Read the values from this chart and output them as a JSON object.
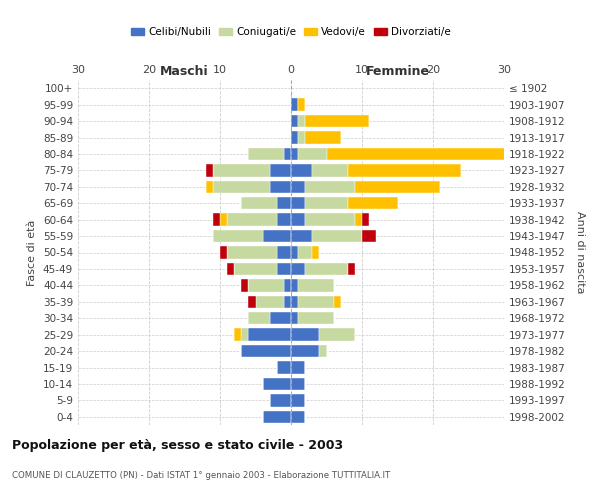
{
  "age_groups": [
    "100+",
    "95-99",
    "90-94",
    "85-89",
    "80-84",
    "75-79",
    "70-74",
    "65-69",
    "60-64",
    "55-59",
    "50-54",
    "45-49",
    "40-44",
    "35-39",
    "30-34",
    "25-29",
    "20-24",
    "15-19",
    "10-14",
    "5-9",
    "0-4"
  ],
  "birth_years": [
    "≤ 1902",
    "1903-1907",
    "1908-1912",
    "1913-1917",
    "1918-1922",
    "1923-1927",
    "1928-1932",
    "1933-1937",
    "1938-1942",
    "1943-1947",
    "1948-1952",
    "1953-1957",
    "1958-1962",
    "1963-1967",
    "1968-1972",
    "1973-1977",
    "1978-1982",
    "1983-1987",
    "1988-1992",
    "1993-1997",
    "1998-2002"
  ],
  "colors": {
    "celibi": "#4472c4",
    "coniugati": "#c5d9a0",
    "vedovi": "#ffc000",
    "divorziati": "#c0000c"
  },
  "males": {
    "celibi": [
      0,
      0,
      0,
      0,
      1,
      3,
      3,
      2,
      2,
      4,
      2,
      2,
      1,
      1,
      3,
      6,
      7,
      2,
      4,
      3,
      4
    ],
    "coniugati": [
      0,
      0,
      0,
      0,
      5,
      8,
      8,
      5,
      7,
      7,
      7,
      6,
      5,
      4,
      3,
      1,
      0,
      0,
      0,
      0,
      0
    ],
    "vedovi": [
      0,
      0,
      0,
      0,
      0,
      0,
      1,
      0,
      1,
      0,
      0,
      0,
      0,
      0,
      0,
      1,
      0,
      0,
      0,
      0,
      0
    ],
    "divorziati": [
      0,
      0,
      0,
      0,
      0,
      1,
      0,
      0,
      1,
      0,
      1,
      1,
      1,
      1,
      0,
      0,
      0,
      0,
      0,
      0,
      0
    ]
  },
  "females": {
    "celibi": [
      0,
      1,
      1,
      1,
      1,
      3,
      2,
      2,
      2,
      3,
      1,
      2,
      1,
      1,
      1,
      4,
      4,
      2,
      2,
      2,
      2
    ],
    "coniugati": [
      0,
      0,
      1,
      1,
      4,
      5,
      7,
      6,
      7,
      7,
      2,
      6,
      5,
      5,
      5,
      5,
      1,
      0,
      0,
      0,
      0
    ],
    "vedovi": [
      0,
      1,
      9,
      5,
      27,
      16,
      12,
      7,
      1,
      0,
      1,
      0,
      0,
      1,
      0,
      0,
      0,
      0,
      0,
      0,
      0
    ],
    "divorziati": [
      0,
      0,
      0,
      0,
      0,
      0,
      0,
      0,
      1,
      2,
      0,
      1,
      0,
      0,
      0,
      0,
      0,
      0,
      0,
      0,
      0
    ]
  },
  "xlim": [
    -30,
    30
  ],
  "xticks": [
    -30,
    -20,
    -10,
    0,
    10,
    20,
    30
  ],
  "xticklabels": [
    "30",
    "20",
    "10",
    "0",
    "10",
    "20",
    "30"
  ],
  "title": "Popolazione per età, sesso e stato civile - 2003",
  "subtitle": "COMUNE DI CLAUZETTO (PN) - Dati ISTAT 1° gennaio 2003 - Elaborazione TUTTITALIA.IT",
  "ylabel_left": "Fasce di età",
  "ylabel_right": "Anni di nascita",
  "label_maschi": "Maschi",
  "label_femmine": "Femmine",
  "legend_labels": [
    "Celibi/Nubili",
    "Coniugati/e",
    "Vedovi/e",
    "Divorziati/e"
  ],
  "background_color": "#ffffff",
  "grid_color": "#cccccc"
}
